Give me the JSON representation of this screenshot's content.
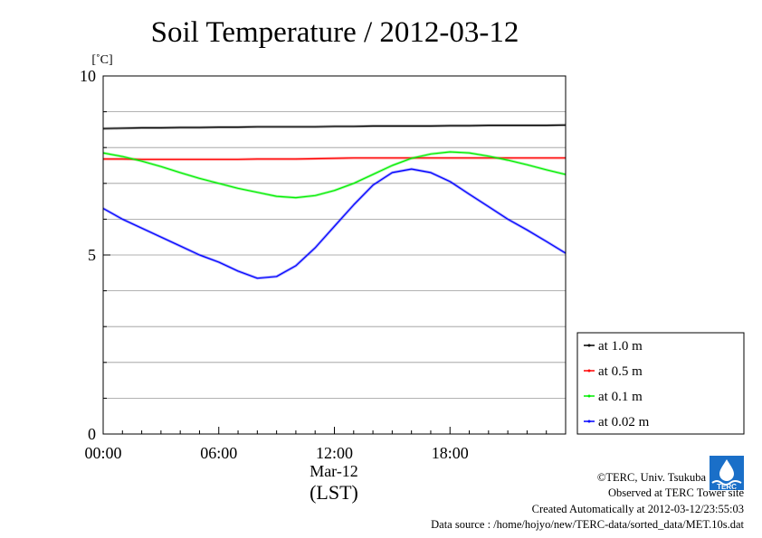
{
  "chart_data": {
    "type": "line",
    "title": "Soil Temperature / 2012-03-12",
    "ylabel": "[˚C]",
    "xlabel": "(LST)",
    "date_label": "Mar-12",
    "xlim": [
      0,
      24
    ],
    "ylim": [
      0,
      10
    ],
    "x_ticks": [
      {
        "value": 0,
        "label": "00:00"
      },
      {
        "value": 6,
        "label": "06:00"
      },
      {
        "value": 12,
        "label": "12:00"
      },
      {
        "value": 18,
        "label": "18:00"
      }
    ],
    "y_ticks": [
      {
        "value": 0,
        "label": "0"
      },
      {
        "value": 5,
        "label": "5"
      },
      {
        "value": 10,
        "label": "10"
      }
    ],
    "grid": true,
    "legend_position": "right",
    "x": [
      0,
      1,
      2,
      3,
      4,
      5,
      6,
      7,
      8,
      9,
      10,
      11,
      12,
      13,
      14,
      15,
      16,
      17,
      18,
      19,
      20,
      21,
      22,
      23,
      24
    ],
    "series": [
      {
        "name": "at 1.0 m",
        "color": "#000000",
        "values": [
          8.53,
          8.54,
          8.55,
          8.55,
          8.56,
          8.56,
          8.57,
          8.57,
          8.58,
          8.58,
          8.58,
          8.58,
          8.59,
          8.59,
          8.6,
          8.6,
          8.6,
          8.6,
          8.61,
          8.61,
          8.62,
          8.62,
          8.62,
          8.62,
          8.63
        ]
      },
      {
        "name": "at 0.5 m",
        "color": "#ff0000",
        "values": [
          7.68,
          7.68,
          7.67,
          7.67,
          7.67,
          7.67,
          7.67,
          7.67,
          7.68,
          7.68,
          7.68,
          7.69,
          7.7,
          7.71,
          7.71,
          7.71,
          7.71,
          7.71,
          7.71,
          7.71,
          7.71,
          7.71,
          7.71,
          7.71,
          7.71
        ]
      },
      {
        "name": "at 0.1 m",
        "color": "#00ee00",
        "values": [
          7.85,
          7.75,
          7.62,
          7.47,
          7.3,
          7.14,
          7.0,
          6.86,
          6.75,
          6.64,
          6.6,
          6.66,
          6.8,
          7.0,
          7.25,
          7.5,
          7.7,
          7.82,
          7.88,
          7.85,
          7.76,
          7.65,
          7.52,
          7.38,
          7.25
        ]
      },
      {
        "name": "at 0.02 m",
        "color": "#0000ff",
        "values": [
          6.3,
          6.0,
          5.75,
          5.5,
          5.25,
          5.0,
          4.8,
          4.55,
          4.35,
          4.4,
          4.7,
          5.2,
          5.8,
          6.4,
          6.95,
          7.3,
          7.4,
          7.3,
          7.05,
          6.7,
          6.35,
          6.0,
          5.7,
          5.38,
          5.05
        ]
      }
    ]
  },
  "footer": {
    "copyright": "©TERC, Univ. Tsukuba",
    "site": "Observed at TERC Tower site",
    "created": "Created Automatically at 2012-03-12/23:55:03",
    "source": "Data source : /home/hojyo/new/TERC-data/sorted_data/MET.10s.dat"
  },
  "logo": {
    "text": "TERC",
    "color": "#1a6fc8"
  }
}
